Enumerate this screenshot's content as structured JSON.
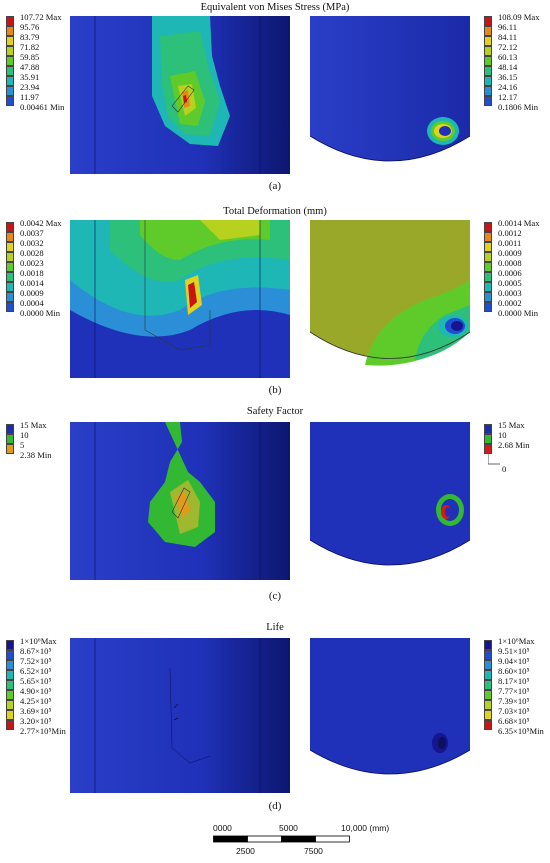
{
  "panels": [
    {
      "id": "a",
      "title": "Equivalent von Mises Stress (MPa)",
      "label": "(a)",
      "legend_left": [
        "107.72 Max",
        "95.76",
        "83.79",
        "71.82",
        "59.85",
        "47.88",
        "35.91",
        "23.94",
        "11.97",
        "0.00461 Min"
      ],
      "legend_right": [
        "108.09 Max",
        "96.11",
        "84.11",
        "72.12",
        "60.13",
        "48.14",
        "36.15",
        "24.16",
        "12.17",
        "0.1806 Min"
      ]
    },
    {
      "id": "b",
      "title": "Total Deformation (mm)",
      "label": "(b)",
      "legend_left": [
        "0.0042 Max",
        "0.0037",
        "0.0032",
        "0.0028",
        "0.0023",
        "0.0018",
        "0.0014",
        "0.0009",
        "0.0004",
        "0.0000 Min"
      ],
      "legend_right": [
        "0.0014 Max",
        "0.0012",
        "0.0011",
        "0.0009",
        "0.0008",
        "0.0006",
        "0.0005",
        "0.0003",
        "0.0002",
        "0.0000 Min"
      ]
    },
    {
      "id": "c",
      "title": "Safety Factor",
      "label": "(c)",
      "legend_left": [
        "15 Max",
        "10",
        "5",
        "2.38 Min"
      ],
      "legend_right": [
        "15 Max",
        "10",
        "2.68 Min",
        "0"
      ]
    },
    {
      "id": "d",
      "title": "Life",
      "label": "(d)",
      "legend_left": [
        "1×10⁶Max",
        "8.67×10⁵",
        "7.52×10⁵",
        "6.52×10⁵",
        "5.65×10⁵",
        "4.90×10⁵",
        "4.25×10⁵",
        "3.69×10⁵",
        "3.20×10⁵",
        "2.77×10⁵Min"
      ],
      "legend_right": [
        "1×10⁶Max",
        "9.51×10⁵",
        "9.04×10⁵",
        "8.60×10⁵",
        "8.17×10⁵",
        "7.77×10⁵",
        "7.39×10⁵",
        "7.03×10⁵",
        "6.68×10⁵",
        "6.35×10⁵Min"
      ]
    }
  ],
  "scale_bar": {
    "top_labels": [
      "0000",
      "5000",
      "10,000 (mm)"
    ],
    "bottom_labels": [
      "2500",
      "7500"
    ]
  },
  "colors": {
    "legend10": [
      "#c81414",
      "#e8871a",
      "#e0d21e",
      "#b6d11e",
      "#5fcb2a",
      "#2cc07a",
      "#1fb6b6",
      "#2a8fd6",
      "#1f4fd0",
      "#16148f"
    ],
    "safety_left": [
      "#1a2fb0",
      "#33b833",
      "#e39a1c"
    ],
    "safety_right": [
      "#1a2fb0",
      "#33b833",
      "#d81818"
    ],
    "model_blue": "#1f31b8"
  }
}
